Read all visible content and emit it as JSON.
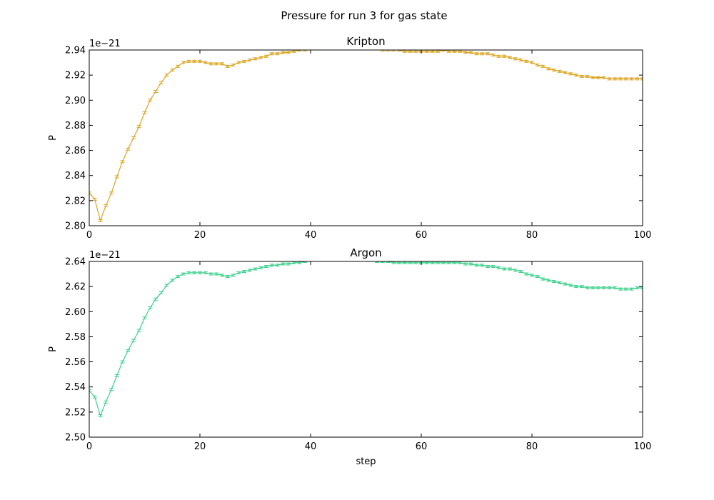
{
  "figure": {
    "title": "Pressure for run 3 for gas state"
  },
  "chart_data": [
    {
      "type": "line",
      "title": "Kripton",
      "xlabel": "",
      "ylabel": "P",
      "y_offset_text": "1e−21",
      "xlim": [
        0,
        100
      ],
      "ylim": [
        2.8,
        2.94
      ],
      "xticks": [
        "0",
        "20",
        "40",
        "60",
        "80",
        "100"
      ],
      "yticks": [
        "2.80",
        "2.82",
        "2.84",
        "2.86",
        "2.88",
        "2.90",
        "2.92",
        "2.94"
      ],
      "color": "#daa520",
      "error_bars": true,
      "x": [
        0,
        1,
        2,
        3,
        4,
        5,
        6,
        7,
        8,
        9,
        10,
        11,
        12,
        13,
        14,
        15,
        16,
        17,
        18,
        19,
        20,
        21,
        22,
        23,
        24,
        25,
        26,
        27,
        28,
        29,
        30,
        31,
        32,
        33,
        34,
        35,
        36,
        37,
        38,
        39,
        40,
        41,
        42,
        43,
        44,
        45,
        46,
        47,
        48,
        49,
        50,
        51,
        52,
        53,
        54,
        55,
        56,
        57,
        58,
        59,
        60,
        61,
        62,
        63,
        64,
        65,
        66,
        67,
        68,
        69,
        70,
        71,
        72,
        73,
        74,
        75,
        76,
        77,
        78,
        79,
        80,
        81,
        82,
        83,
        84,
        85,
        86,
        87,
        88,
        89,
        90,
        91,
        92,
        93,
        94,
        95,
        96,
        97,
        98,
        99,
        100
      ],
      "y": [
        2.826,
        2.821,
        2.804,
        2.816,
        2.826,
        2.839,
        2.851,
        2.861,
        2.87,
        2.879,
        2.89,
        2.9,
        2.907,
        2.914,
        2.92,
        2.924,
        2.927,
        2.93,
        2.931,
        2.931,
        2.931,
        2.93,
        2.929,
        2.929,
        2.929,
        2.927,
        2.928,
        2.93,
        2.931,
        2.932,
        2.933,
        2.934,
        2.935,
        2.937,
        2.937,
        2.938,
        2.938,
        2.939,
        2.94,
        2.94,
        2.941,
        2.941,
        2.942,
        2.942,
        2.942,
        2.942,
        2.942,
        2.942,
        2.942,
        2.942,
        2.942,
        2.941,
        2.941,
        2.94,
        2.94,
        2.94,
        2.94,
        2.939,
        2.939,
        2.939,
        2.939,
        2.939,
        2.939,
        2.939,
        2.94,
        2.939,
        2.939,
        2.939,
        2.938,
        2.938,
        2.937,
        2.937,
        2.937,
        2.936,
        2.935,
        2.935,
        2.934,
        2.933,
        2.932,
        2.931,
        2.93,
        2.928,
        2.927,
        2.925,
        2.924,
        2.923,
        2.922,
        2.921,
        2.92,
        2.919,
        2.919,
        2.918,
        2.918,
        2.918,
        2.917,
        2.917,
        2.917,
        2.917,
        2.917,
        2.917,
        2.917
      ]
    },
    {
      "type": "line",
      "title": "Argon",
      "xlabel": "step",
      "ylabel": "P",
      "y_offset_text": "1e−21",
      "xlim": [
        0,
        100
      ],
      "ylim": [
        2.5,
        2.64
      ],
      "xticks": [
        "0",
        "20",
        "40",
        "60",
        "80",
        "100"
      ],
      "yticks": [
        "2.50",
        "2.52",
        "2.54",
        "2.56",
        "2.58",
        "2.60",
        "2.62",
        "2.64"
      ],
      "color": "#3cd08c",
      "error_bars": true,
      "x": [
        0,
        1,
        2,
        3,
        4,
        5,
        6,
        7,
        8,
        9,
        10,
        11,
        12,
        13,
        14,
        15,
        16,
        17,
        18,
        19,
        20,
        21,
        22,
        23,
        24,
        25,
        26,
        27,
        28,
        29,
        30,
        31,
        32,
        33,
        34,
        35,
        36,
        37,
        38,
        39,
        40,
        41,
        42,
        43,
        44,
        45,
        46,
        47,
        48,
        49,
        50,
        51,
        52,
        53,
        54,
        55,
        56,
        57,
        58,
        59,
        60,
        61,
        62,
        63,
        64,
        65,
        66,
        67,
        68,
        69,
        70,
        71,
        72,
        73,
        74,
        75,
        76,
        77,
        78,
        79,
        80,
        81,
        82,
        83,
        84,
        85,
        86,
        87,
        88,
        89,
        90,
        91,
        92,
        93,
        94,
        95,
        96,
        97,
        98,
        99,
        100
      ],
      "y": [
        2.537,
        2.532,
        2.517,
        2.528,
        2.538,
        2.549,
        2.56,
        2.569,
        2.577,
        2.585,
        2.595,
        2.603,
        2.61,
        2.615,
        2.621,
        2.625,
        2.628,
        2.63,
        2.631,
        2.631,
        2.631,
        2.631,
        2.63,
        2.63,
        2.629,
        2.628,
        2.629,
        2.631,
        2.632,
        2.633,
        2.634,
        2.635,
        2.636,
        2.637,
        2.637,
        2.638,
        2.638,
        2.639,
        2.639,
        2.64,
        2.641,
        2.641,
        2.642,
        2.642,
        2.642,
        2.642,
        2.642,
        2.642,
        2.642,
        2.641,
        2.641,
        2.641,
        2.64,
        2.64,
        2.64,
        2.639,
        2.639,
        2.639,
        2.639,
        2.639,
        2.639,
        2.639,
        2.639,
        2.639,
        2.639,
        2.639,
        2.639,
        2.639,
        2.638,
        2.638,
        2.637,
        2.637,
        2.636,
        2.636,
        2.635,
        2.634,
        2.634,
        2.633,
        2.632,
        2.63,
        2.629,
        2.628,
        2.626,
        2.625,
        2.624,
        2.623,
        2.622,
        2.621,
        2.62,
        2.62,
        2.619,
        2.619,
        2.619,
        2.619,
        2.619,
        2.619,
        2.618,
        2.618,
        2.618,
        2.619,
        2.619
      ]
    }
  ]
}
